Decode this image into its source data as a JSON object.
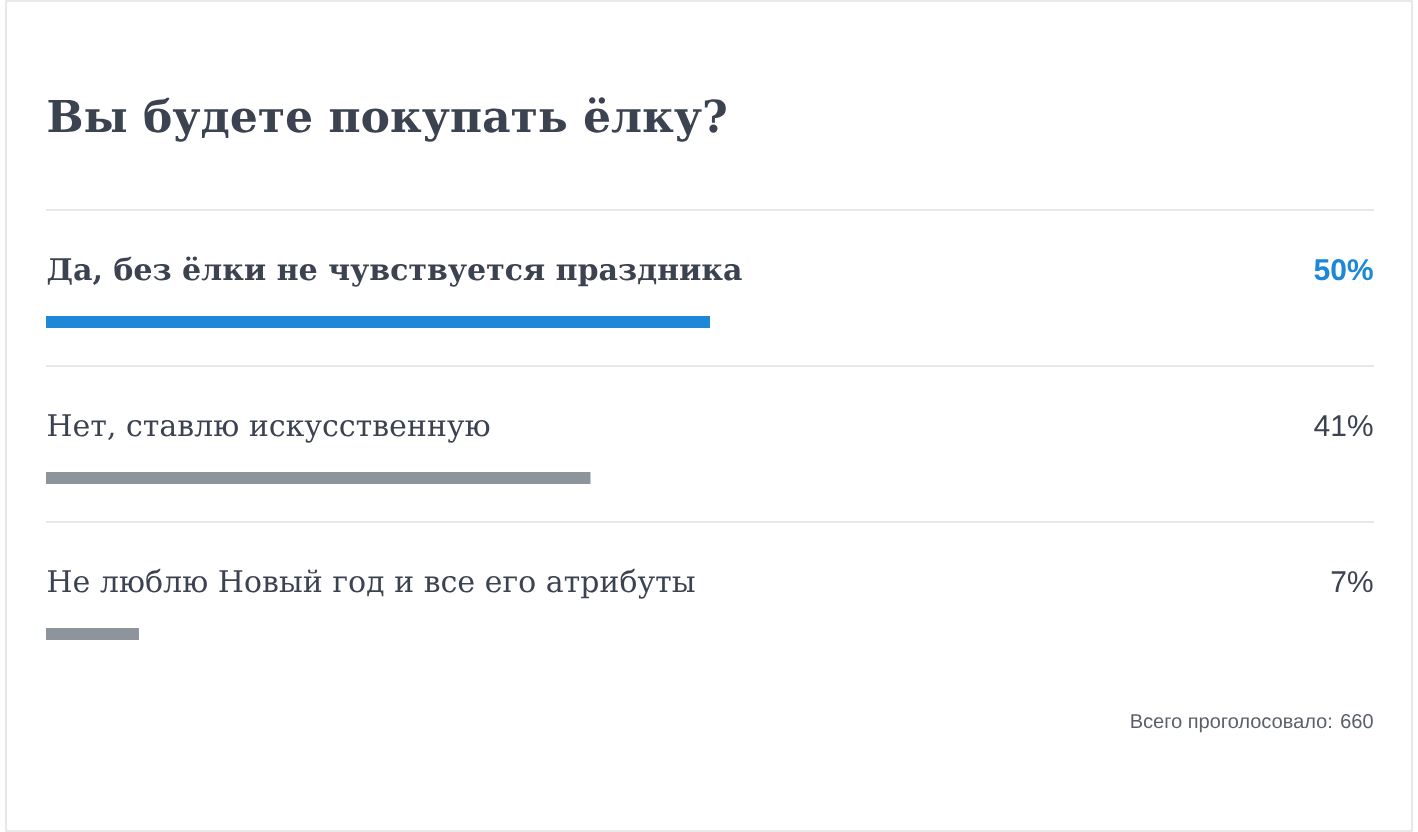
{
  "chart_data": {
    "type": "bar",
    "orientation": "horizontal",
    "title": "Вы будете покупать ёлку?",
    "categories": [
      "Да, без ёлки не чувствуется праздника",
      "Нет, ставлю искусственную",
      "Не люблю Новый год и все его атрибуты"
    ],
    "values": [
      50,
      41,
      7
    ],
    "colors": [
      "#1e88d8",
      "#8e949c",
      "#8e949c"
    ],
    "value_labels": [
      "50%",
      "41%",
      "7%"
    ],
    "xlim": [
      0,
      100
    ],
    "tick_labels": false,
    "annotations": [
      "Всего проголосовало: 660"
    ]
  }
}
